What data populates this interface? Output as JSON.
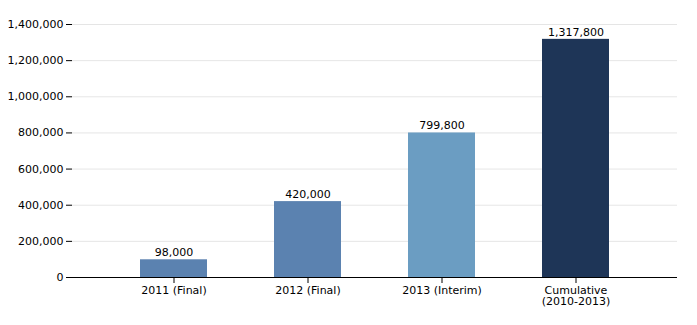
{
  "chart_data": {
    "type": "bar",
    "categories": [
      "2011 (Final)",
      "2012 (Final)",
      "2013 (Interim)",
      "Cumulative\n(2010-2013)"
    ],
    "values": [
      98000,
      420000,
      799800,
      1317800
    ],
    "value_labels": [
      "98,000",
      "420,000",
      "799,800",
      "1,317,800"
    ],
    "colors": [
      "#5b82b0",
      "#5b82b0",
      "#6b9dc2",
      "#1e3557"
    ],
    "ylim": [
      0,
      1400000
    ],
    "yticks": [
      0,
      {
        "value": 200000,
        "label": "200,000"
      },
      {
        "value": 400000,
        "label": "400,000"
      },
      {
        "value": 600000,
        "label": "600,000"
      },
      {
        "value": 800000,
        "label": "800,000"
      },
      {
        "value": 1000000,
        "label": "1,000,000"
      },
      {
        "value": 1200000,
        "label": "1,200,000"
      },
      {
        "value": 1400000,
        "label": "1,400,000"
      }
    ],
    "grid": true,
    "data_labels": true
  }
}
